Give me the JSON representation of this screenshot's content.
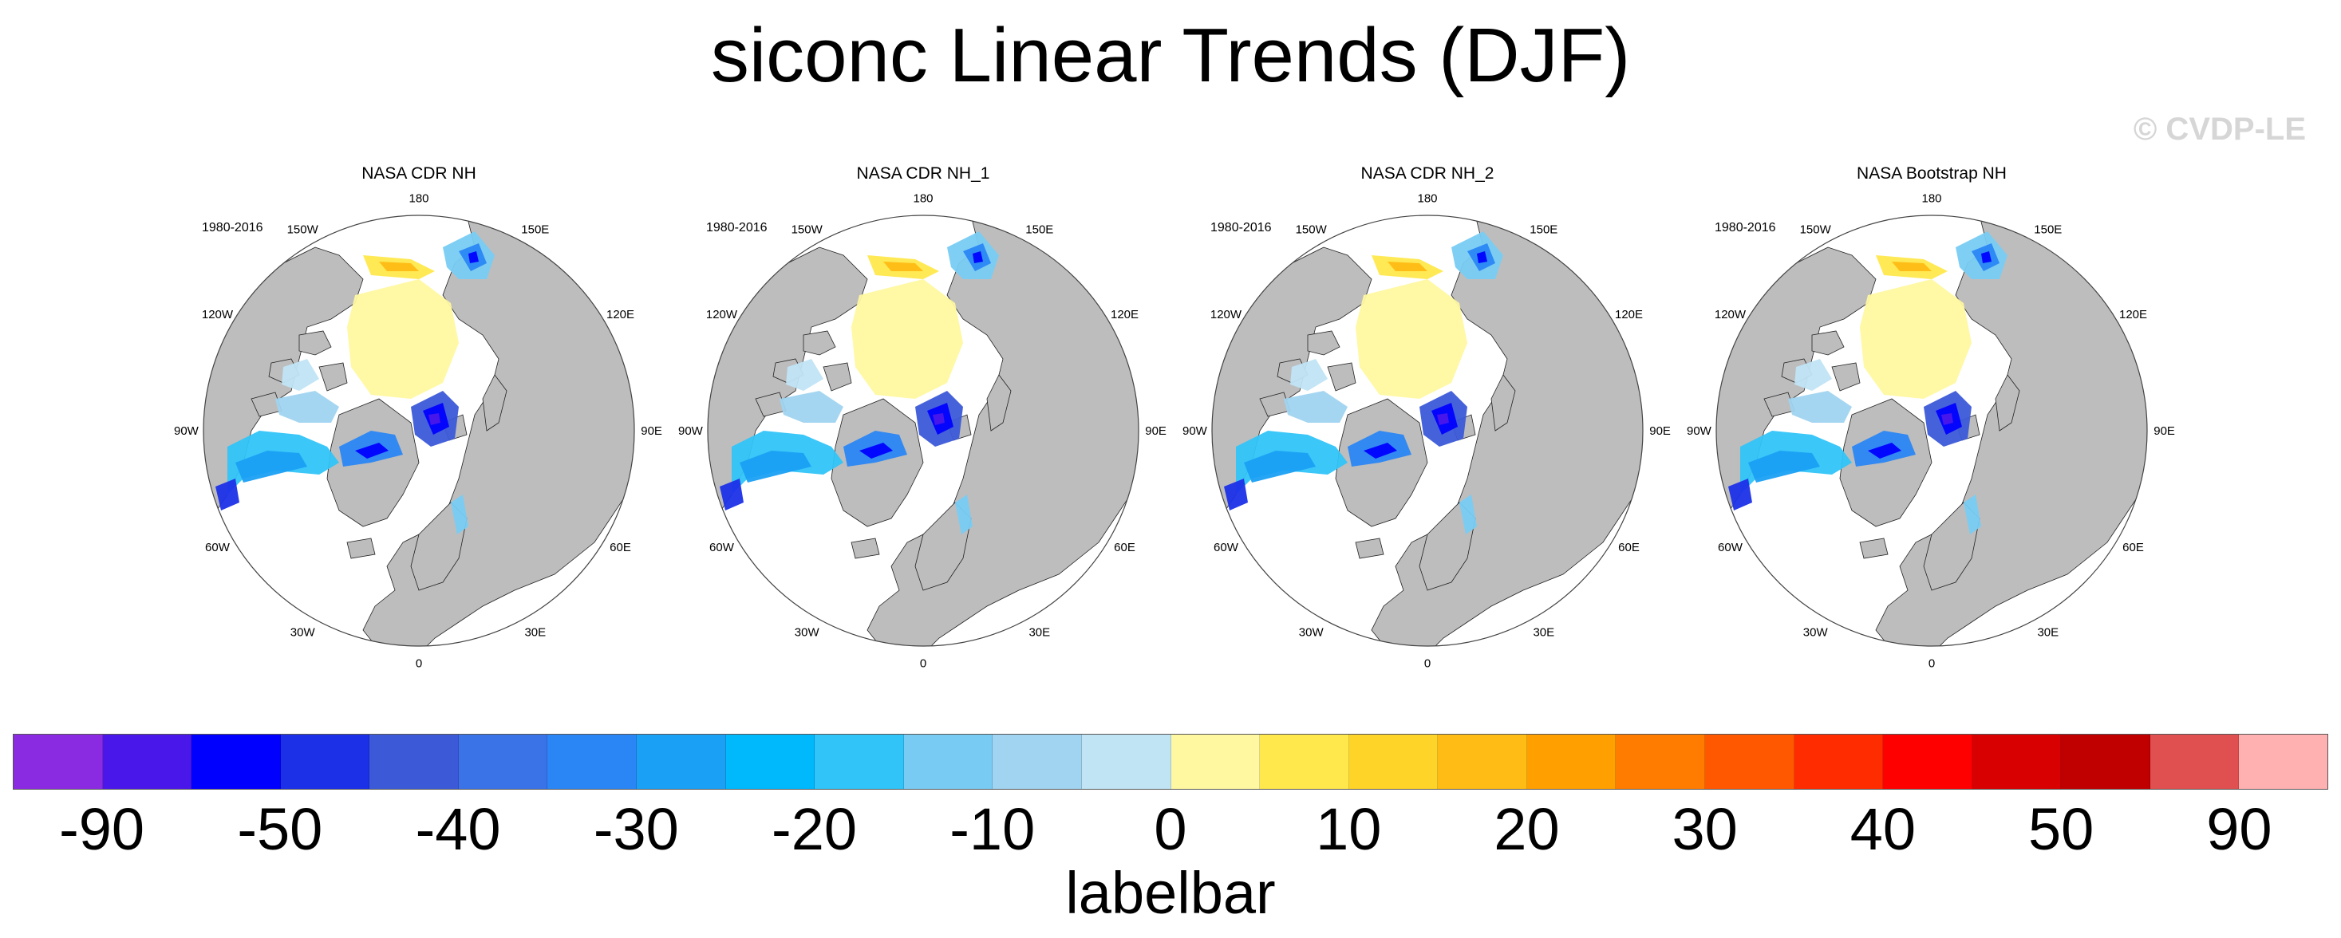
{
  "chart_data": {
    "type": "heatmap",
    "title": "siconc Linear Trends (DJF)",
    "watermark": "© CVDP-LE",
    "projection": "north polar stereographic",
    "period": "1980-2016",
    "longitude_labels": [
      "180",
      "150E",
      "120E",
      "90E",
      "60E",
      "30E",
      "0",
      "30W",
      "60W",
      "90W",
      "120W",
      "150W"
    ],
    "panels": [
      {
        "title": "NASA CDR NH"
      },
      {
        "title": "NASA CDR NH_1"
      },
      {
        "title": "NASA CDR NH_2"
      },
      {
        "title": "NASA Bootstrap NH"
      }
    ],
    "colorbar": {
      "title": "labelbar",
      "tick_labels": [
        "-90",
        "-50",
        "-40",
        "-30",
        "-20",
        "-10",
        "0",
        "10",
        "20",
        "30",
        "40",
        "50",
        "90"
      ],
      "colors": [
        "#8a2be2",
        "#4a17ea",
        "#0000ff",
        "#1c30e8",
        "#3c5ad8",
        "#3a72e8",
        "#2a86f4",
        "#1aa0f4",
        "#00b8fc",
        "#30c4f8",
        "#78ccf4",
        "#a0d4f0",
        "#c0e4f4",
        "#fff8a0",
        "#ffe84c",
        "#ffd428",
        "#ffbc14",
        "#ffa000",
        "#ff7c00",
        "#ff5800",
        "#ff2c00",
        "#ff0000",
        "#d80000",
        "#c00000",
        "#e05050",
        "#ffb0b0"
      ],
      "legend_position": "bottom"
    },
    "land_color": "#bdbdbd",
    "ocean_color": "#ffffff"
  }
}
